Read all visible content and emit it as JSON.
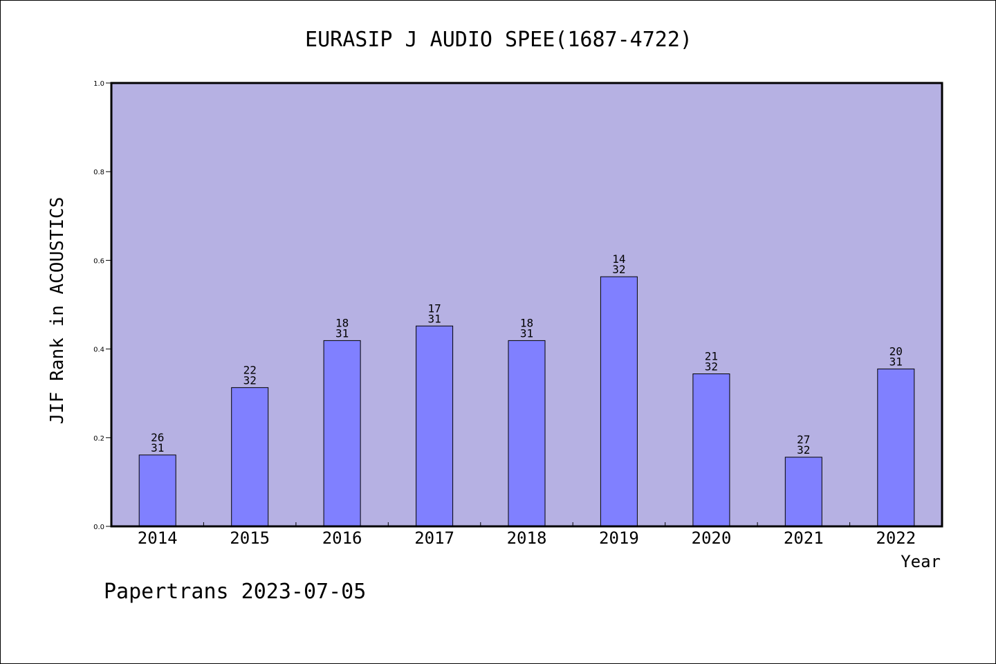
{
  "chart_data": {
    "type": "bar",
    "title": "EURASIP J AUDIO SPEE(1687-4722)",
    "xlabel": "Year",
    "ylabel": "JIF Rank in ACOUSTICS",
    "categories": [
      "2014",
      "2015",
      "2016",
      "2017",
      "2018",
      "2019",
      "2020",
      "2021",
      "2022"
    ],
    "ranks": [
      26,
      22,
      18,
      17,
      18,
      14,
      21,
      27,
      20
    ],
    "totals": [
      31,
      32,
      31,
      31,
      31,
      32,
      32,
      32,
      31
    ],
    "values": [
      0.161,
      0.313,
      0.419,
      0.452,
      0.419,
      0.563,
      0.344,
      0.156,
      0.355
    ],
    "ylim": [
      0,
      1.0
    ],
    "yticks": [
      "0.0",
      "0.2",
      "0.4",
      "0.6",
      "0.8",
      "1.0"
    ],
    "grid": false,
    "legend": "none",
    "colors": {
      "plot_background": "#b6b1e3",
      "bar_fill": "#8080ff",
      "axis": "#000000"
    }
  },
  "footer": {
    "text": "Papertrans 2023-07-05"
  }
}
